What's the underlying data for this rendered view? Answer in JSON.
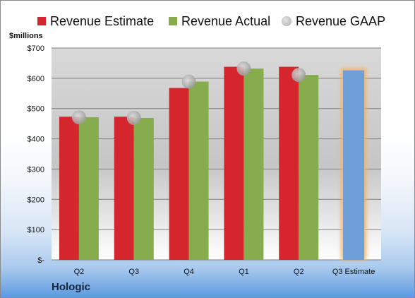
{
  "legend": {
    "estimate": "Revenue Estimate",
    "actual": "Revenue Actual",
    "gaap": "Revenue GAAP"
  },
  "units": "$millions",
  "company": "Hologic",
  "colors": {
    "estimate": "#d5252d",
    "actual": "#86ac4d",
    "gaap": "#b0b0b0",
    "projected": "#6f9fd8",
    "projected_glow": "#f5b35e"
  },
  "chart_data": {
    "type": "bar",
    "categories": [
      "Q2",
      "Q3",
      "Q4",
      "Q1",
      "Q2",
      "Q3 Estimate"
    ],
    "ylim": [
      0,
      700
    ],
    "yticks": [
      {
        "value": 0,
        "label": "$-"
      },
      {
        "value": 100,
        "label": "$100"
      },
      {
        "value": 200,
        "label": "$200"
      },
      {
        "value": 300,
        "label": "$300"
      },
      {
        "value": 400,
        "label": "$400"
      },
      {
        "value": 500,
        "label": "$500"
      },
      {
        "value": 600,
        "label": "$600"
      },
      {
        "value": 700,
        "label": "$700"
      }
    ],
    "ylabel": "$millions",
    "grid": true,
    "legend_position": "top",
    "series": [
      {
        "name": "Revenue Estimate",
        "values": [
          473,
          473,
          568,
          638,
          638,
          null
        ]
      },
      {
        "name": "Revenue Actual",
        "values": [
          471,
          469,
          589,
          632,
          611,
          null
        ]
      },
      {
        "name": "Revenue GAAP",
        "values": [
          471,
          469,
          589,
          632,
          611,
          null
        ]
      }
    ],
    "projection": {
      "category": "Q3 Estimate",
      "value": 626
    }
  }
}
